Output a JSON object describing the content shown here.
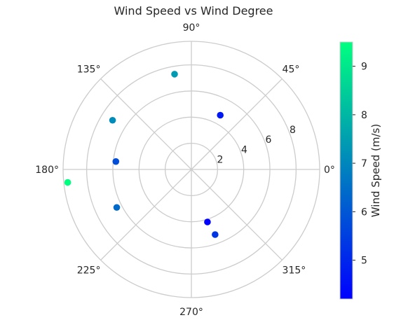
{
  "chart_data": {
    "type": "scatter",
    "projection": "polar",
    "title": "Wind Speed vs Wind Degree",
    "angle_unit": "degrees",
    "angle_ticks": [
      0,
      45,
      90,
      135,
      180,
      225,
      270,
      315
    ],
    "angle_tick_labels": [
      "0°",
      "45°",
      "90°",
      "135°",
      "180°",
      "225°",
      "270°",
      "315°"
    ],
    "radial_ticks": [
      2,
      4,
      6,
      8
    ],
    "radial_tick_labels": [
      "2",
      "4",
      "6",
      "8"
    ],
    "rlim": [
      0,
      9.8
    ],
    "grid": true,
    "points": [
      {
        "theta": 62,
        "r": 4.7,
        "speed": 4.7
      },
      {
        "theta": 100,
        "r": 7.4,
        "speed": 7.4
      },
      {
        "theta": 148,
        "r": 7.1,
        "speed": 7.1
      },
      {
        "theta": 174,
        "r": 5.8,
        "speed": 5.8
      },
      {
        "theta": 186,
        "r": 9.5,
        "speed": 9.5
      },
      {
        "theta": 207,
        "r": 6.4,
        "speed": 6.4
      },
      {
        "theta": 287,
        "r": 4.2,
        "speed": 4.2
      },
      {
        "theta": 290,
        "r": 5.3,
        "speed": 5.3
      }
    ],
    "colorbar": {
      "label": "Wind Speed (m/s)",
      "range": [
        4.2,
        9.5
      ],
      "ticks": [
        5,
        6,
        7,
        8,
        9
      ],
      "tick_labels": [
        "5",
        "6",
        "7",
        "8",
        "9"
      ],
      "colormap": "winter",
      "color_low": "#0000ff",
      "color_high": "#00ff80"
    }
  }
}
